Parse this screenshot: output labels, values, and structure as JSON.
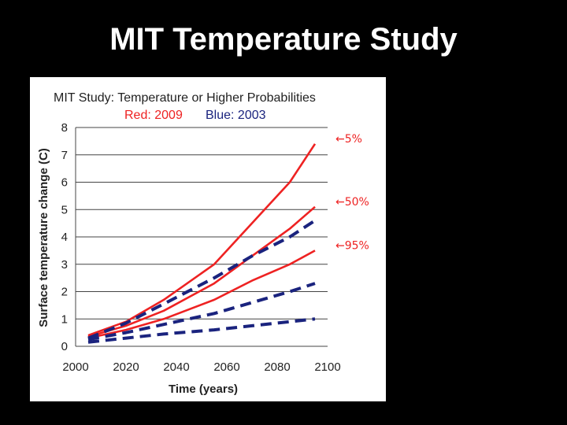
{
  "slide": {
    "title": "MIT Temperature Study"
  },
  "chart_data": {
    "type": "line",
    "title": "MIT Study: Temperature or Higher Probabilities",
    "subtitle_red": "Red: 2009",
    "subtitle_blue": "Blue: 2003",
    "xlabel": "Time (years)",
    "ylabel": "Surface temperature change (C)",
    "xlim": [
      2000,
      2100
    ],
    "ylim": [
      0,
      8
    ],
    "xticks": [
      2000,
      2020,
      2040,
      2060,
      2080,
      2100
    ],
    "yticks": [
      0,
      1,
      2,
      3,
      4,
      5,
      6,
      7,
      8
    ],
    "grid": "horizontal",
    "colors": {
      "red": "#ee2222",
      "blue": "#1a237e"
    },
    "series": [
      {
        "color": "red",
        "style": "solid",
        "x": [
          2005,
          2020,
          2035,
          2055,
          2070,
          2085,
          2095
        ],
        "y": [
          0.4,
          0.9,
          1.7,
          3.0,
          4.5,
          6.0,
          7.4
        ]
      },
      {
        "color": "red",
        "style": "solid",
        "x": [
          2005,
          2020,
          2035,
          2055,
          2070,
          2085,
          2095
        ],
        "y": [
          0.35,
          0.75,
          1.3,
          2.3,
          3.3,
          4.3,
          5.1
        ]
      },
      {
        "color": "red",
        "style": "solid",
        "x": [
          2005,
          2020,
          2035,
          2055,
          2070,
          2085,
          2095
        ],
        "y": [
          0.3,
          0.6,
          1.0,
          1.7,
          2.4,
          3.0,
          3.5
        ]
      },
      {
        "color": "blue",
        "style": "dashed",
        "x": [
          2005,
          2020,
          2035,
          2055,
          2070,
          2085,
          2095
        ],
        "y": [
          0.3,
          0.85,
          1.55,
          2.5,
          3.3,
          4.0,
          4.6
        ]
      },
      {
        "color": "blue",
        "style": "dashed",
        "x": [
          2005,
          2020,
          2035,
          2055,
          2070,
          2085,
          2095
        ],
        "y": [
          0.25,
          0.5,
          0.8,
          1.2,
          1.6,
          2.0,
          2.3
        ]
      },
      {
        "color": "blue",
        "style": "dashed",
        "x": [
          2005,
          2020,
          2035,
          2055,
          2070,
          2085,
          2095
        ],
        "y": [
          0.15,
          0.3,
          0.45,
          0.6,
          0.75,
          0.9,
          1.0
        ]
      }
    ],
    "annotations": [
      {
        "text": "←5%",
        "y": 7.4
      },
      {
        "text": "←50%",
        "y": 5.1
      },
      {
        "text": "←95%",
        "y": 3.5
      }
    ]
  }
}
